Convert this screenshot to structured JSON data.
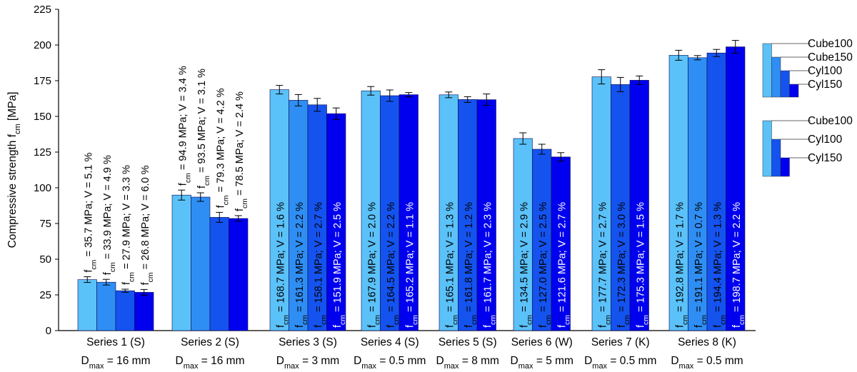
{
  "chart_data": {
    "type": "bar",
    "ylabel": "Compressive strength f",
    "ylabel_sub": "cm",
    "ylabel_unit": " [MPa]",
    "ylim": [
      0,
      225
    ],
    "yticks": [
      0,
      25,
      50,
      75,
      100,
      125,
      150,
      175,
      200,
      225
    ],
    "grid": false,
    "colors": [
      "#5bc1f9",
      "#2f8ef3",
      "#1553ef",
      "#0000ef"
    ],
    "groups": [
      {
        "label": "Series 1 (S)",
        "dmax": "16 mm",
        "bars": [
          {
            "value": 35.7,
            "err": 2.0,
            "v": "5.1"
          },
          {
            "value": 33.9,
            "err": 2.0,
            "v": "4.9"
          },
          {
            "value": 27.9,
            "err": 1.1,
            "v": "3.3"
          },
          {
            "value": 26.8,
            "err": 2.0,
            "v": "6.0"
          }
        ]
      },
      {
        "label": "Series 2 (S)",
        "dmax": "16 mm",
        "bars": [
          {
            "value": 94.9,
            "err": 3.5,
            "v": "3.4"
          },
          {
            "value": 93.5,
            "err": 3.0,
            "v": "3.1"
          },
          {
            "value": 79.3,
            "err": 3.5,
            "v": "4.2"
          },
          {
            "value": 78.5,
            "err": 2.0,
            "v": "2.4"
          }
        ]
      },
      {
        "label": "Series 3 (S)",
        "dmax": "3 mm",
        "bars": [
          {
            "value": 168.7,
            "err": 3.0,
            "v": "1.6"
          },
          {
            "value": 161.3,
            "err": 4.0,
            "v": "2.2"
          },
          {
            "value": 158.1,
            "err": 4.5,
            "v": "2.7"
          },
          {
            "value": 151.9,
            "err": 4.0,
            "v": "2.5"
          }
        ]
      },
      {
        "label": "Series 4 (S)",
        "dmax": "0.5 mm",
        "bars": [
          {
            "value": 167.9,
            "err": 3.0,
            "v": "2.0"
          },
          {
            "value": 164.5,
            "err": 4.0,
            "v": "2.2"
          },
          {
            "value": 165.2,
            "err": 1.5,
            "v": "1.1"
          }
        ]
      },
      {
        "label": "Series 5 (S)",
        "dmax": "8 mm",
        "bars": [
          {
            "value": 165.1,
            "err": 2.0,
            "v": "1.3"
          },
          {
            "value": 161.8,
            "err": 2.0,
            "v": "1.2"
          },
          {
            "value": 161.7,
            "err": 4.0,
            "v": "2.3"
          }
        ]
      },
      {
        "label": "Series 6 (W)",
        "dmax": "5 mm",
        "bars": [
          {
            "value": 134.5,
            "err": 4.0,
            "v": "2.9"
          },
          {
            "value": 127.0,
            "err": 3.5,
            "v": "2.5"
          },
          {
            "value": 121.6,
            "err": 3.0,
            "v": "2.7"
          }
        ]
      },
      {
        "label": "Series 7 (K)",
        "dmax": "0.5 mm",
        "bars": [
          {
            "value": 177.7,
            "err": 5.0,
            "v": "2.7"
          },
          {
            "value": 172.3,
            "err": 5.0,
            "v": "3.0"
          },
          {
            "value": 175.3,
            "err": 3.0,
            "v": "1.5"
          }
        ]
      },
      {
        "label": "Series 8 (K)",
        "dmax": "0.5 mm",
        "bars": [
          {
            "value": 192.8,
            "err": 3.5,
            "v": "1.7"
          },
          {
            "value": 191.1,
            "err": 1.5,
            "v": "0.7"
          },
          {
            "value": 194.4,
            "err": 2.5,
            "v": "1.3"
          },
          {
            "value": 198.7,
            "err": 4.5,
            "v": "2.2"
          }
        ]
      }
    ],
    "legend4": [
      "Cube100",
      "Cube150",
      "Cyl100",
      "Cyl150"
    ],
    "legend3": [
      "Cube100",
      "Cyl100",
      "Cyl150"
    ],
    "label_parts": {
      "f": "f",
      "sub": "cm",
      "eq": " = ",
      "unit": " MPa; V = ",
      "pct": " %",
      "dmax_d": "D",
      "dmax_sub": "max",
      "dmax_eq": " = "
    }
  }
}
